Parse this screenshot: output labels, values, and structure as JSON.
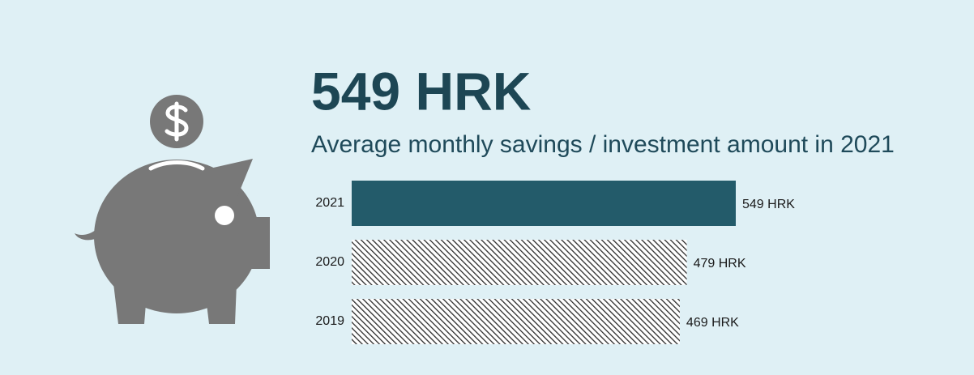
{
  "chart_data": {
    "type": "bar",
    "orientation": "horizontal",
    "headline": "549 HRK",
    "title": "Average monthly savings / investment amount in 2021",
    "categories": [
      "2021",
      "2020",
      "2019"
    ],
    "values": [
      549,
      479,
      469
    ],
    "value_labels": [
      "549 HRK",
      "479 HRK",
      "469 HRK"
    ],
    "color": "#235b6a",
    "bar_fills": [
      "solid",
      "hatched",
      "hatched"
    ]
  }
}
